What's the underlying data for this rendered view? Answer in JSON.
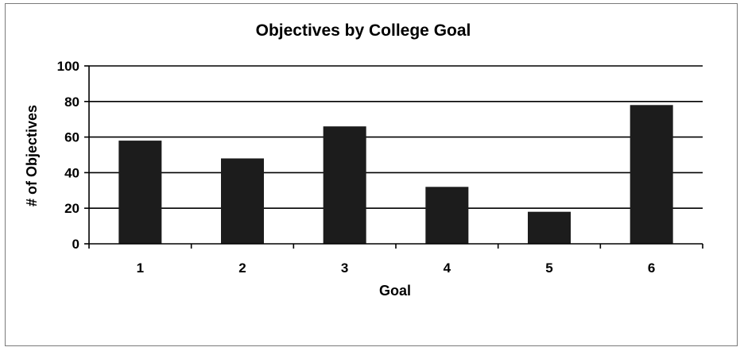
{
  "chart_data": {
    "type": "bar",
    "title": "Objectives by College Goal",
    "xlabel": "Goal",
    "ylabel": "# of Objectives",
    "categories": [
      "1",
      "2",
      "3",
      "4",
      "5",
      "6"
    ],
    "values": [
      58,
      48,
      66,
      32,
      18,
      78
    ],
    "ylim": [
      0,
      100
    ],
    "yticks": [
      "0",
      "20",
      "40",
      "60",
      "80",
      "100"
    ],
    "grid": true,
    "legend": "none",
    "colors": {
      "bar": "#1c1c1c",
      "grid": "#000000",
      "axis": "#000000"
    }
  }
}
